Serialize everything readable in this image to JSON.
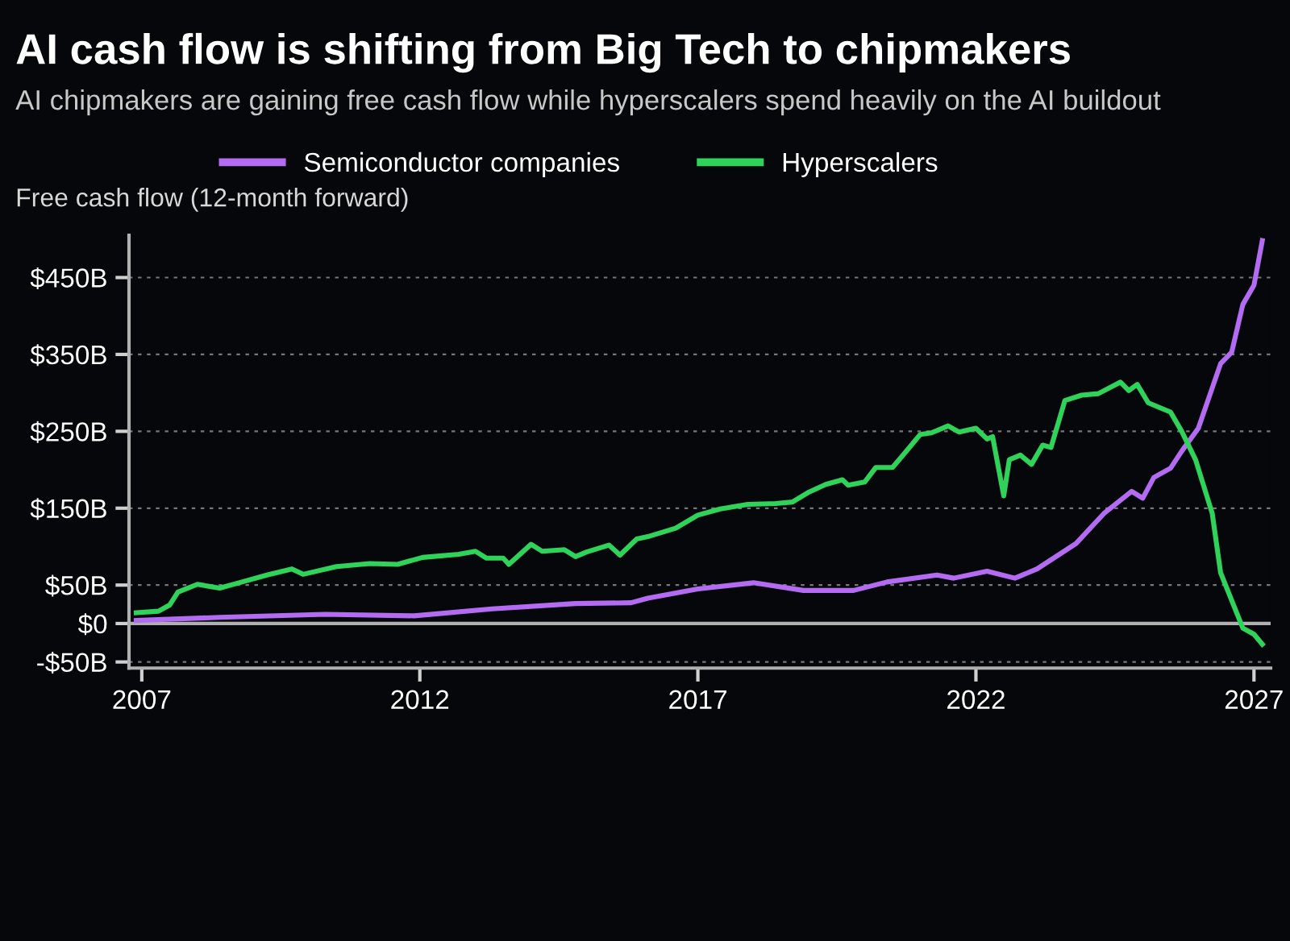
{
  "chart_data": {
    "type": "line",
    "title": "AI cash flow is shifting from Big Tech to chipmakers",
    "subtitle": "AI chipmakers are gaining free cash flow while hyperscalers spend heavily on the AI buildout",
    "ylabel": "Free cash flow (12-month forward)",
    "series": [
      {
        "name": "Semiconductor companies",
        "color": "#b36bf2",
        "x": [
          2006.9,
          2008.4,
          2010.3,
          2011.9,
          2013.3,
          2014.8,
          2015.8,
          2016.1,
          2017.0,
          2018.0,
          2018.9,
          2019.3,
          2019.8,
          2020.4,
          2021.3,
          2021.6,
          2022.2,
          2022.7,
          2023.1,
          2023.8,
          2024.3,
          2024.8,
          2025.0,
          2025.2,
          2025.5,
          2025.7,
          2026.0,
          2026.4,
          2026.6,
          2026.8,
          2027.0,
          2027.15
        ],
        "values": [
          4,
          8,
          12,
          10,
          19,
          26,
          27,
          33,
          45,
          53,
          43,
          43,
          43,
          54,
          63,
          59,
          68,
          59,
          71,
          104,
          143,
          172,
          163,
          190,
          202,
          224,
          254,
          338,
          353,
          415,
          440,
          498
        ]
      },
      {
        "name": "Hyperscalers",
        "color": "#2fd35a",
        "x": [
          2006.9,
          2007.3,
          2007.5,
          2007.65,
          2008.0,
          2008.4,
          2008.8,
          2009.25,
          2009.7,
          2009.9,
          2010.5,
          2011.1,
          2011.6,
          2012.05,
          2012.7,
          2013.0,
          2013.2,
          2013.5,
          2013.6,
          2014.0,
          2014.2,
          2014.6,
          2014.8,
          2015.0,
          2015.4,
          2015.6,
          2015.9,
          2016.1,
          2016.6,
          2017.0,
          2017.4,
          2017.9,
          2018.4,
          2018.7,
          2019.0,
          2019.3,
          2019.6,
          2019.7,
          2020.0,
          2020.2,
          2020.5,
          2020.7,
          2021.0,
          2021.2,
          2021.5,
          2021.7,
          2022.0,
          2022.2,
          2022.3,
          2022.5,
          2022.6,
          2022.8,
          2023.0,
          2023.2,
          2023.35,
          2023.6,
          2023.9,
          2024.2,
          2024.6,
          2024.75,
          2024.9,
          2025.1,
          2025.5,
          2025.7,
          2025.95,
          2026.25,
          2026.4,
          2026.6,
          2026.8,
          2027.0,
          2027.15
        ],
        "values": [
          14,
          16,
          24,
          41,
          51,
          46,
          54,
          63,
          71,
          64,
          74,
          78,
          77,
          86,
          90,
          94,
          85,
          85,
          77,
          103,
          94,
          96,
          87,
          93,
          102,
          89,
          110,
          113,
          124,
          141,
          149,
          155,
          156,
          158,
          171,
          181,
          187,
          180,
          184,
          203,
          203,
          220,
          246,
          248,
          257,
          249,
          254,
          240,
          243,
          166,
          213,
          219,
          207,
          232,
          229,
          290,
          297,
          299,
          314,
          303,
          311,
          287,
          275,
          250,
          213,
          143,
          66,
          30,
          -6,
          -14,
          -27
        ]
      }
    ],
    "xlim": [
      2006.77,
      2027.3
    ],
    "xticks": [
      2007,
      2012,
      2017,
      2022,
      2027
    ],
    "ylim": [
      -58,
      505
    ],
    "yticks": [
      {
        "value": -50,
        "label": "-$50B"
      },
      {
        "value": 0,
        "label": "$0"
      },
      {
        "value": 50,
        "label": "$50B"
      },
      {
        "value": 150,
        "label": "$150B"
      },
      {
        "value": 250,
        "label": "$250B"
      },
      {
        "value": 350,
        "label": "$350B"
      },
      {
        "value": 450,
        "label": "$450B"
      }
    ],
    "grid": "y",
    "legend": "top",
    "line_style": "solid",
    "ref_lines": [
      {
        "axis": "y",
        "value": 0,
        "color": "#b0b0b0"
      }
    ]
  }
}
